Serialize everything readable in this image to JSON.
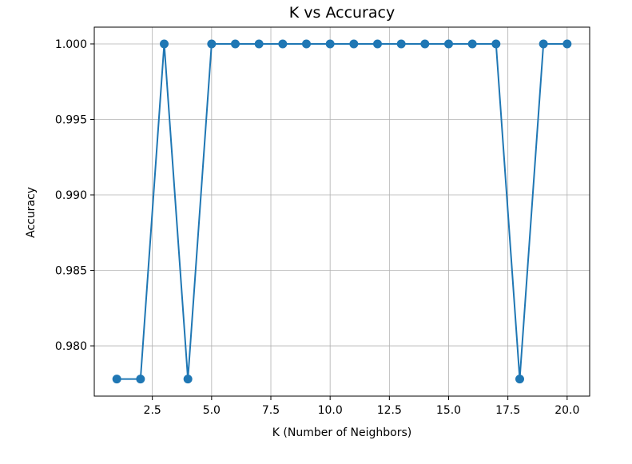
{
  "chart_data": {
    "type": "line",
    "title": "K vs Accuracy",
    "xlabel": "K (Number of Neighbors)",
    "ylabel": "Accuracy",
    "x": [
      1,
      2,
      3,
      4,
      5,
      6,
      7,
      8,
      9,
      10,
      11,
      12,
      13,
      14,
      15,
      16,
      17,
      18,
      19,
      20
    ],
    "series": [
      {
        "values": [
          0.9778,
          0.9778,
          1.0,
          0.9778,
          1.0,
          1.0,
          1.0,
          1.0,
          1.0,
          1.0,
          1.0,
          1.0,
          1.0,
          1.0,
          1.0,
          1.0,
          1.0,
          0.9778,
          1.0,
          1.0
        ],
        "color": "#1f77b4",
        "marker": "circle"
      }
    ],
    "xlim": [
      0.05,
      20.95
    ],
    "ylim": [
      0.97667,
      1.00111
    ],
    "xticks": [
      2.5,
      5.0,
      7.5,
      10.0,
      12.5,
      15.0,
      17.5,
      20.0
    ],
    "xtick_labels": [
      "2.5",
      "5.0",
      "7.5",
      "10.0",
      "12.5",
      "15.0",
      "17.5",
      "20.0"
    ],
    "yticks": [
      0.98,
      0.985,
      0.99,
      0.995,
      1.0
    ],
    "ytick_labels": [
      "0.980",
      "0.985",
      "0.990",
      "0.995",
      "1.000"
    ],
    "grid": true,
    "legend": "none"
  }
}
